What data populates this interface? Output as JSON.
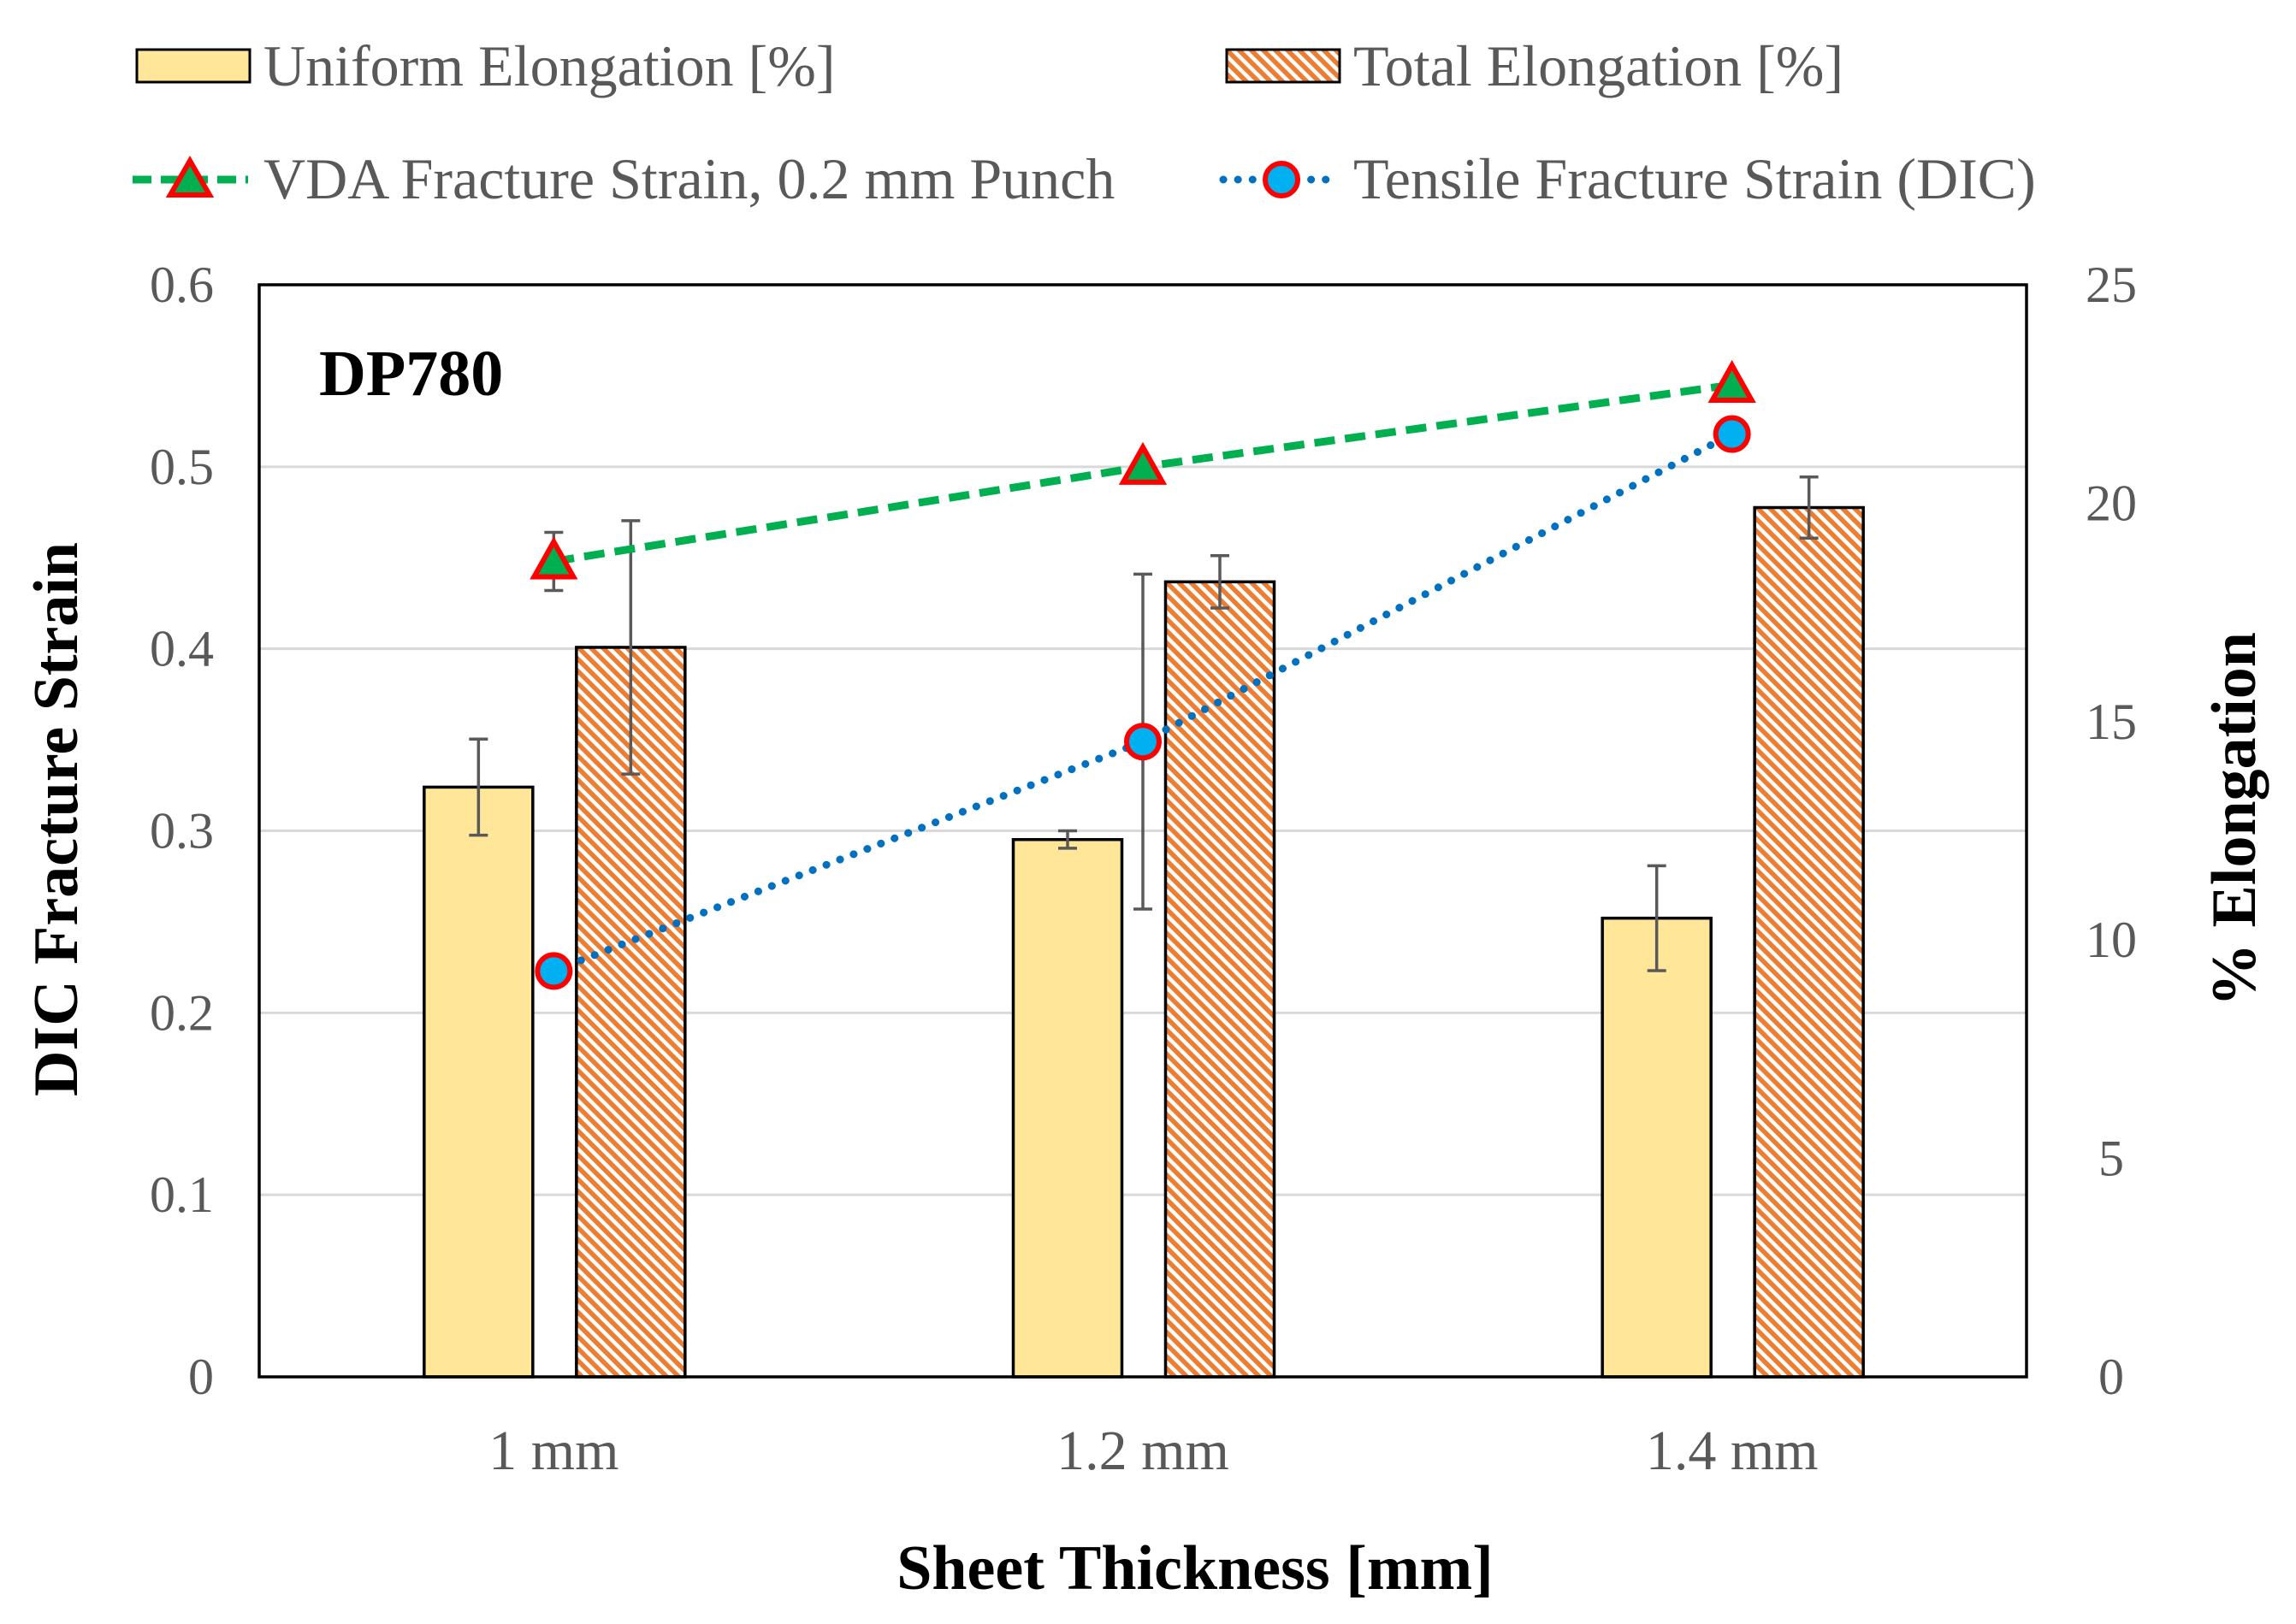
{
  "chart_data": {
    "type": "bar",
    "annotation": "DP780",
    "xlabel": "Sheet Thickness [mm]",
    "ylabel": "DIC Fracture Strain",
    "y2label": "% Elongation",
    "categories": [
      "1 mm",
      "1.2 mm",
      "1.4 mm"
    ],
    "ylim": [
      0,
      0.6
    ],
    "y2lim": [
      0,
      25
    ],
    "yticks": [
      "0",
      "0.1",
      "0.2",
      "0.3",
      "0.4",
      "0.5",
      "0.6"
    ],
    "y2ticks": [
      "0",
      "5",
      "10",
      "15",
      "20",
      "25"
    ],
    "grid": true,
    "legend_position": "top",
    "bar_series": [
      {
        "name": "Uniform Elongation [%]",
        "axis": "secondary",
        "values": [
          13.5,
          12.3,
          10.5
        ],
        "error": [
          1.1,
          0.2,
          1.2
        ],
        "color": "#FFE699",
        "pattern": "solid"
      },
      {
        "name": "Total Elongation [%]",
        "axis": "secondary",
        "values": [
          16.7,
          18.2,
          19.9
        ],
        "error": [
          2.9,
          0.6,
          0.7
        ],
        "color": "#ED7D31",
        "pattern": "diagonal-hatch"
      }
    ],
    "line_series": [
      {
        "name": "VDA Fracture Strain, 0.2 mm Punch",
        "axis": "primary",
        "values": [
          0.448,
          0.5,
          0.545
        ],
        "error": [
          0.016,
          0,
          0
        ],
        "line_color": "#00B050",
        "marker": "triangle",
        "marker_fill": "#00B050",
        "marker_edge": "#FF0000",
        "line_style": "dashed"
      },
      {
        "name": "Tensile Fracture Strain (DIC)",
        "axis": "primary",
        "values": [
          0.223,
          0.349,
          0.518
        ],
        "error": [
          0,
          0.092,
          0
        ],
        "line_color": "#0070C0",
        "marker": "circle",
        "marker_fill": "#00B0F0",
        "marker_edge": "#FF0000",
        "line_style": "dotted"
      }
    ]
  }
}
